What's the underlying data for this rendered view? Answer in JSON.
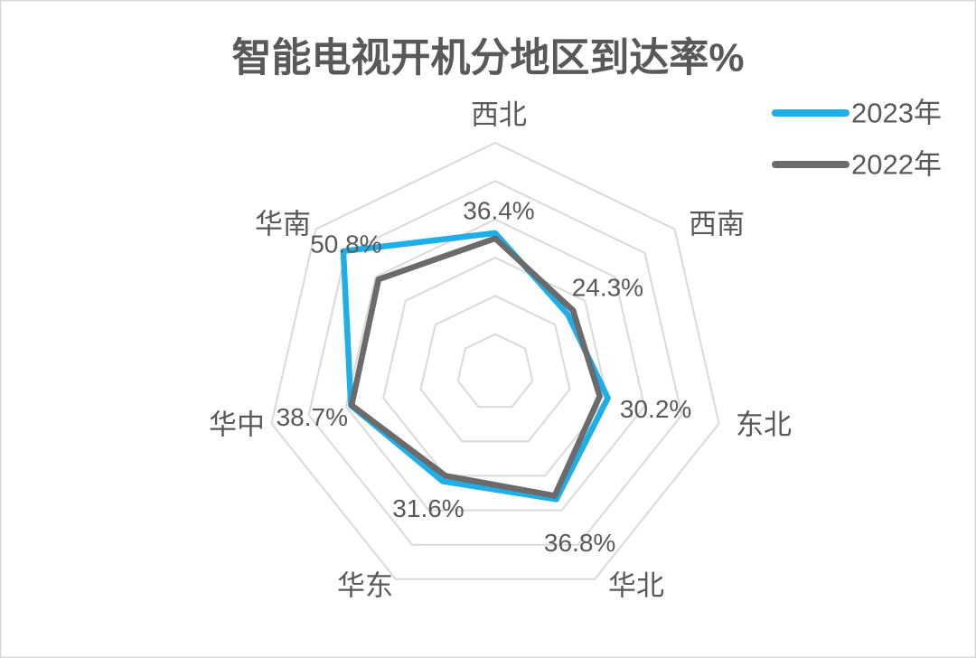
{
  "chart_data": {
    "type": "radar",
    "title": "智能电视开机分地区到达率%",
    "categories": [
      "西北",
      "西南",
      "东北",
      "华北",
      "华东",
      "华中",
      "华南"
    ],
    "series": [
      {
        "name": "2023年",
        "values": [
          36.4,
          24.3,
          30.2,
          36.8,
          31.6,
          38.7,
          50.8
        ],
        "color": "#1eaee8",
        "data_labels": [
          "36.4%",
          "24.3%",
          "30.2%",
          "36.8%",
          "31.6%",
          "38.7%",
          "50.8%"
        ]
      },
      {
        "name": "2022年",
        "values": [
          35.0,
          26.0,
          28.0,
          35.8,
          30.0,
          38.5,
          39.0
        ],
        "color": "#6b6b6b"
      }
    ],
    "rlim": [
      0,
      60
    ],
    "grid": true,
    "grid_step": 10,
    "legend": "top-right"
  },
  "colors": {
    "text": "#595959",
    "grid": "#d9d9d9",
    "border": "#d9d9d9"
  }
}
